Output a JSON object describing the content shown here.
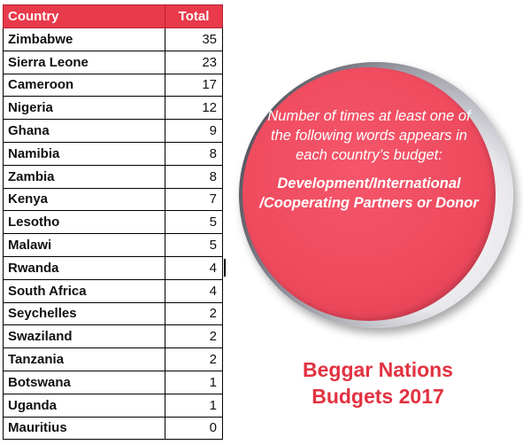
{
  "chart_data": {
    "type": "table",
    "columns": [
      "Country",
      "Total"
    ],
    "rows": [
      {
        "country": "Zimbabwe",
        "total": 35
      },
      {
        "country": "Sierra Leone",
        "total": 23
      },
      {
        "country": "Cameroon",
        "total": 17
      },
      {
        "country": "Nigeria",
        "total": 12
      },
      {
        "country": "Ghana",
        "total": 9
      },
      {
        "country": "Namibia",
        "total": 8
      },
      {
        "country": "Zambia",
        "total": 8
      },
      {
        "country": "Kenya",
        "total": 7
      },
      {
        "country": "Lesotho",
        "total": 5
      },
      {
        "country": "Malawi",
        "total": 5
      },
      {
        "country": "Rwanda",
        "total": 4
      },
      {
        "country": "South Africa",
        "total": 4
      },
      {
        "country": "Seychelles",
        "total": 2
      },
      {
        "country": "Swaziland",
        "total": 2
      },
      {
        "country": "Tanzania",
        "total": 2
      },
      {
        "country": "Botswana",
        "total": 1
      },
      {
        "country": "Uganda",
        "total": 1
      },
      {
        "country": "Mauritius",
        "total": 0
      }
    ],
    "title_line1": "Beggar Nations",
    "title_line2": "Budgets 2017",
    "note": "Number of times at least one of the following words appears in each country’s budget:",
    "keywords": "Development/International /Cooperating Partners or Donor"
  },
  "colors": {
    "header_fill": "#e83a4a",
    "disc_fill": "#ee4a5e",
    "title_text": "#e23240"
  }
}
